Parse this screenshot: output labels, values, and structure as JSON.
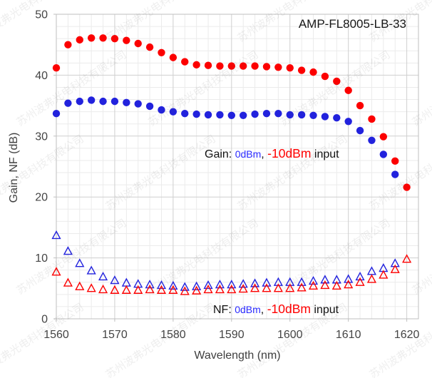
{
  "title": "AMP-FL8005-LB-33",
  "watermark": {
    "text": "苏州波弗光电科技有限公司"
  },
  "chart_data": {
    "type": "scatter",
    "title": "AMP-FL8005-LB-33",
    "xlabel": "Wavelength (nm)",
    "ylabel": "Gain, NF (dB)",
    "xlim": [
      1560,
      1622
    ],
    "ylim": [
      0,
      50
    ],
    "x_major_ticks": [
      1560,
      1570,
      1580,
      1590,
      1600,
      1610,
      1620
    ],
    "y_major_ticks": [
      0,
      10,
      20,
      30,
      40,
      50
    ],
    "minor_step_x": 2,
    "minor_step_y": 2,
    "grid": true,
    "colors": {
      "blue_series": "#2222dd",
      "red_series": "#fc0000",
      "minor_grid": "#ebebeb",
      "major_grid": "#cfcfcf",
      "plot_border": "#bfbfbf",
      "tick_label": "#444444"
    },
    "x": [
      1560,
      1562,
      1564,
      1566,
      1568,
      1570,
      1572,
      1574,
      1576,
      1578,
      1580,
      1582,
      1584,
      1586,
      1588,
      1590,
      1592,
      1594,
      1596,
      1598,
      1600,
      1602,
      1604,
      1606,
      1608,
      1610,
      1612,
      1614,
      1616,
      1618,
      1620
    ],
    "series": [
      {
        "name": "NF 0dBm input",
        "marker": "triangle-open",
        "color": "#2222dd",
        "values": [
          13.7,
          11.1,
          9.1,
          7.9,
          6.9,
          6.3,
          5.9,
          5.7,
          5.6,
          5.5,
          5.4,
          5.2,
          5.3,
          5.5,
          5.6,
          5.6,
          5.7,
          5.8,
          5.9,
          6.0,
          6.0,
          6.0,
          6.2,
          6.4,
          6.4,
          6.5,
          6.9,
          7.8,
          8.3,
          9.1,
          null
        ]
      },
      {
        "name": "NF -10dBm input",
        "marker": "triangle-open",
        "color": "#fc0000",
        "values": [
          7.7,
          5.9,
          5.3,
          5.0,
          4.8,
          4.7,
          4.7,
          4.7,
          4.8,
          4.7,
          4.7,
          4.5,
          4.6,
          4.8,
          4.8,
          4.8,
          4.9,
          5.0,
          5.0,
          5.0,
          5.0,
          5.1,
          5.4,
          5.5,
          5.4,
          5.6,
          6.0,
          6.5,
          7.2,
          8.1,
          9.8
        ]
      },
      {
        "name": "Gain 0dBm input",
        "marker": "circle",
        "color": "#2222dd",
        "values": [
          33.7,
          35.4,
          35.7,
          35.9,
          35.7,
          35.7,
          35.5,
          35.3,
          34.9,
          34.3,
          34.0,
          33.7,
          33.6,
          33.5,
          33.5,
          33.4,
          33.4,
          33.6,
          33.7,
          33.7,
          33.5,
          33.5,
          33.4,
          33.2,
          33.0,
          32.4,
          30.9,
          29.3,
          27.0,
          23.7,
          null
        ]
      },
      {
        "name": "Gain -10dBm input",
        "marker": "circle",
        "color": "#fc0000",
        "values": [
          41.2,
          45.0,
          45.8,
          46.1,
          46.1,
          46.0,
          45.7,
          45.2,
          44.6,
          43.7,
          42.9,
          42.2,
          41.7,
          41.6,
          41.5,
          41.5,
          41.5,
          41.5,
          41.4,
          41.3,
          41.2,
          40.8,
          40.5,
          39.8,
          39.0,
          37.5,
          35.0,
          32.8,
          29.9,
          25.9,
          21.6
        ]
      }
    ],
    "annotations": [
      {
        "id": "gain-label",
        "parts": [
          {
            "text": "Gain: ",
            "color": "#111111",
            "size": 16
          },
          {
            "text": "0dBm",
            "color": "#2a2aff",
            "size": 14
          },
          {
            "text": ", ",
            "color": "#111111",
            "size": 16
          },
          {
            "text": "-10dBm",
            "color": "#ff0000",
            "size": 17.5
          },
          {
            "text": " input",
            "color": "#111111",
            "size": 16
          }
        ]
      },
      {
        "id": "nf-label",
        "parts": [
          {
            "text": "NF: ",
            "color": "#111111",
            "size": 16
          },
          {
            "text": "0dBm",
            "color": "#2a2aff",
            "size": 14
          },
          {
            "text": ", ",
            "color": "#111111",
            "size": 16
          },
          {
            "text": "-10dBm",
            "color": "#ff0000",
            "size": 17.5
          },
          {
            "text": " input",
            "color": "#111111",
            "size": 16
          }
        ]
      }
    ]
  }
}
